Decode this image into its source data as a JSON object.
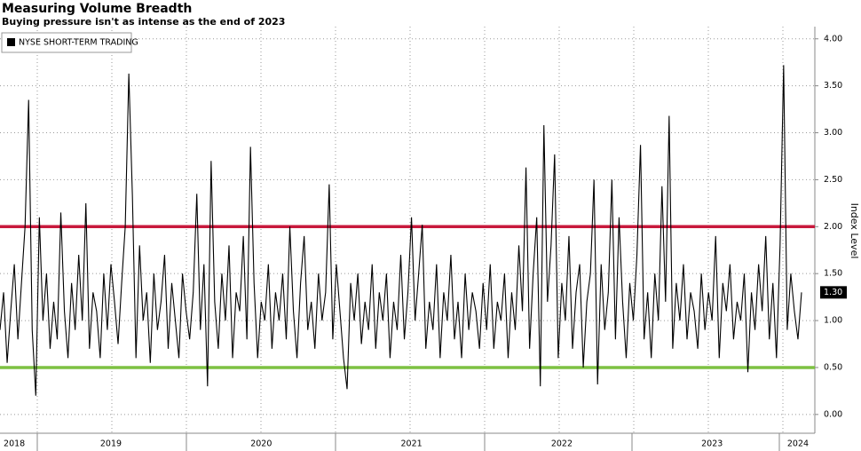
{
  "chart_data": {
    "type": "line",
    "title": "Measuring Volume Breadth",
    "subtitle": "Buying pressure isn't as intense as the end of 2023",
    "y_axis_label": "Index Level",
    "categories": [
      null,
      null,
      null,
      null,
      "2018",
      null,
      null,
      null,
      null,
      null,
      null,
      null,
      null,
      null,
      null,
      null,
      null,
      null,
      null,
      null,
      null,
      null,
      null,
      null,
      null,
      null,
      null,
      null,
      null,
      null,
      null,
      "2019",
      null,
      null,
      null,
      null,
      null,
      null,
      null,
      null,
      null,
      null,
      null,
      null,
      null,
      null,
      null,
      null,
      null,
      null,
      null,
      null,
      null,
      null,
      null,
      null,
      null,
      null,
      null,
      null,
      null,
      null,
      null,
      null,
      null,
      null,
      null,
      null,
      null,
      null,
      null,
      null,
      null,
      "2020",
      null,
      null,
      null,
      null,
      null,
      null,
      null,
      null,
      null,
      null,
      null,
      null,
      null,
      null,
      null,
      null,
      null,
      null,
      null,
      null,
      null,
      null,
      null,
      null,
      null,
      null,
      null,
      null,
      null,
      null,
      null,
      null,
      null,
      null,
      null,
      null,
      null,
      null,
      null,
      null,
      null,
      "2021",
      null,
      null,
      null,
      null,
      null,
      null,
      null,
      null,
      null,
      null,
      null,
      null,
      null,
      null,
      null,
      null,
      null,
      null,
      null,
      null,
      null,
      null,
      null,
      null,
      null,
      null,
      null,
      null,
      null,
      null,
      null,
      null,
      null,
      null,
      null,
      null,
      null,
      null,
      null,
      null,
      null,
      "2022",
      null,
      null,
      null,
      null,
      null,
      null,
      null,
      null,
      null,
      null,
      null,
      null,
      null,
      null,
      null,
      null,
      null,
      null,
      null,
      null,
      null,
      null,
      null,
      null,
      null,
      null,
      null,
      null,
      null,
      null,
      null,
      null,
      null,
      null,
      null,
      null,
      null,
      null,
      null,
      null,
      null,
      "2023",
      null,
      null,
      null,
      null,
      null,
      null,
      null,
      null,
      null,
      null,
      null,
      null,
      null,
      null,
      null,
      null,
      null,
      null,
      null,
      null,
      null,
      null,
      null,
      "2024",
      null
    ],
    "series": [
      {
        "name": "NYSE SHORT-TERM TRADING",
        "color": "#000000",
        "last_value_label": "1.30",
        "values": [
          0.9,
          1.3,
          0.55,
          1.1,
          1.6,
          0.8,
          1.4,
          2.0,
          3.35,
          0.9,
          0.2,
          2.1,
          1.0,
          1.5,
          0.7,
          1.2,
          0.8,
          2.15,
          1.1,
          0.6,
          1.4,
          0.9,
          1.7,
          1.0,
          2.25,
          0.7,
          1.3,
          1.1,
          0.6,
          1.5,
          0.9,
          1.6,
          1.2,
          0.75,
          1.4,
          2.0,
          3.63,
          2.33,
          0.6,
          1.8,
          1.0,
          1.3,
          0.55,
          1.5,
          0.9,
          1.2,
          1.7,
          0.7,
          1.4,
          1.0,
          0.6,
          1.5,
          1.1,
          0.8,
          1.3,
          2.35,
          0.9,
          1.6,
          0.3,
          2.7,
          1.2,
          0.7,
          1.5,
          1.0,
          1.8,
          0.6,
          1.3,
          1.1,
          1.9,
          0.8,
          2.85,
          1.4,
          0.6,
          1.2,
          1.0,
          1.6,
          0.7,
          1.3,
          1.0,
          1.5,
          0.8,
          2.0,
          1.1,
          0.6,
          1.4,
          1.9,
          0.9,
          1.2,
          0.7,
          1.5,
          1.0,
          1.3,
          2.45,
          0.8,
          1.6,
          1.1,
          0.6,
          0.27,
          1.4,
          1.0,
          1.5,
          0.75,
          1.2,
          0.9,
          1.6,
          0.7,
          1.3,
          1.0,
          1.5,
          0.6,
          1.2,
          0.9,
          1.7,
          0.8,
          1.3,
          2.1,
          1.0,
          1.5,
          2.02,
          0.7,
          1.2,
          0.9,
          1.6,
          0.6,
          1.3,
          1.0,
          1.7,
          0.8,
          1.2,
          0.6,
          1.5,
          0.9,
          1.3,
          1.1,
          0.7,
          1.4,
          0.9,
          1.6,
          0.7,
          1.2,
          1.0,
          1.5,
          0.6,
          1.3,
          0.9,
          1.8,
          1.1,
          2.63,
          0.7,
          1.5,
          2.1,
          0.3,
          3.08,
          1.2,
          1.8,
          2.77,
          0.6,
          1.4,
          1.0,
          1.9,
          0.7,
          1.3,
          1.6,
          0.5,
          1.2,
          1.5,
          2.5,
          0.32,
          1.6,
          0.9,
          1.3,
          2.5,
          0.8,
          2.1,
          1.2,
          0.6,
          1.4,
          1.0,
          1.7,
          2.87,
          0.8,
          1.3,
          0.6,
          1.5,
          1.0,
          2.43,
          1.2,
          3.18,
          0.7,
          1.4,
          1.0,
          1.6,
          0.8,
          1.3,
          1.1,
          0.7,
          1.5,
          0.9,
          1.3,
          1.0,
          1.9,
          0.6,
          1.4,
          1.1,
          1.6,
          0.8,
          1.2,
          1.0,
          1.5,
          0.45,
          1.3,
          0.9,
          1.6,
          1.1,
          1.9,
          0.8,
          1.4,
          0.6,
          1.8,
          3.72,
          0.9,
          1.5,
          1.1,
          0.8,
          1.3
        ]
      }
    ],
    "hlines": [
      {
        "value": 2,
        "color": "#c8193c"
      },
      {
        "value": 0.5,
        "color": "#7dc142"
      }
    ],
    "ylim": [
      -0.2,
      4.13
    ],
    "yticks": [
      {
        "value": 0,
        "label": "0.00"
      },
      {
        "value": 0.5,
        "label": "0.50"
      },
      {
        "value": 1,
        "label": "1.00"
      },
      {
        "value": 1.5,
        "label": "1.50"
      },
      {
        "value": 2,
        "label": "2.00"
      },
      {
        "value": 2.5,
        "label": "2.50"
      },
      {
        "value": 3,
        "label": "3.00"
      },
      {
        "value": 3.5,
        "label": "3.50"
      },
      {
        "value": 4,
        "label": "4.00"
      }
    ],
    "grid": true,
    "legend": "top-left"
  }
}
